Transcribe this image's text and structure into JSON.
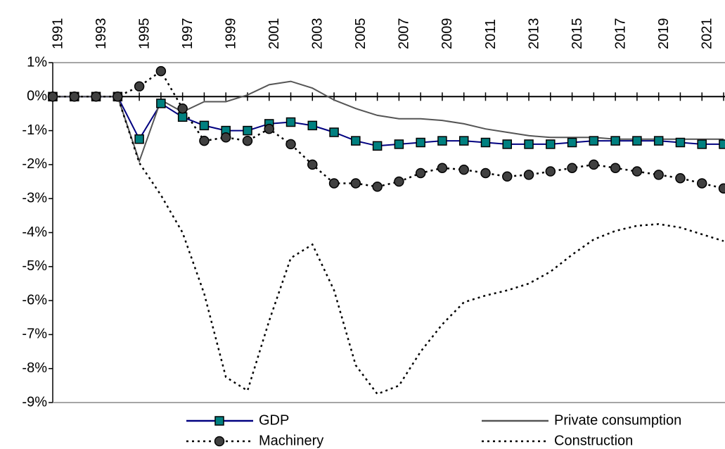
{
  "chart_data": {
    "type": "line",
    "categories": [
      "1991",
      null,
      "1993",
      null,
      "1995",
      null,
      "1997",
      null,
      "1999",
      null,
      "2001",
      null,
      "2003",
      null,
      "2005",
      null,
      "2007",
      null,
      "2009",
      null,
      "2011",
      null,
      "2013",
      null,
      "2015",
      null,
      "2017",
      null,
      "2019",
      null,
      "2021",
      null
    ],
    "ylim": [
      -9,
      1
    ],
    "yticks": [
      {
        "value": 1,
        "label": "1%"
      },
      {
        "value": 0,
        "label": "0%"
      },
      {
        "value": -1,
        "label": "-1%"
      },
      {
        "value": -2,
        "label": "-2%"
      },
      {
        "value": -3,
        "label": "-3%"
      },
      {
        "value": -4,
        "label": "-4%"
      },
      {
        "value": -5,
        "label": "-5%"
      },
      {
        "value": -6,
        "label": "-6%"
      },
      {
        "value": -7,
        "label": "-7%"
      },
      {
        "value": -8,
        "label": "-8%"
      },
      {
        "value": -9,
        "label": "-9%"
      }
    ],
    "series": [
      {
        "name": "GDP",
        "color": "#000080",
        "marker": "square",
        "marker_color": "#008080",
        "line_style": "solid",
        "values": [
          0,
          0,
          0,
          0,
          -1.25,
          -0.2,
          -0.6,
          -0.85,
          -1.0,
          -1.0,
          -0.8,
          -0.75,
          -0.85,
          -1.05,
          -1.3,
          -1.45,
          -1.4,
          -1.35,
          -1.3,
          -1.3,
          -1.35,
          -1.4,
          -1.4,
          -1.4,
          -1.35,
          -1.3,
          -1.3,
          -1.3,
          -1.3,
          -1.35,
          -1.4,
          -1.4
        ]
      },
      {
        "name": "Private consumption",
        "color": "#555555",
        "line_style": "solid",
        "values": [
          0,
          0,
          0,
          0,
          -1.9,
          -0.1,
          -0.45,
          -0.15,
          -0.15,
          0.05,
          0.35,
          0.45,
          0.25,
          -0.1,
          -0.35,
          -0.55,
          -0.65,
          -0.65,
          -0.7,
          -0.8,
          -0.95,
          -1.05,
          -1.15,
          -1.2,
          -1.2,
          -1.2,
          -1.25,
          -1.25,
          -1.25,
          -1.25,
          -1.25,
          -1.25
        ]
      },
      {
        "name": "Machinery",
        "color": "#000000",
        "marker": "circle",
        "marker_color": "#404040",
        "line_style": "dotted",
        "values": [
          0,
          0,
          0,
          0,
          0.3,
          0.75,
          -0.35,
          -1.3,
          -1.2,
          -1.3,
          -0.95,
          -1.4,
          -2.0,
          -2.55,
          -2.55,
          -2.65,
          -2.5,
          -2.25,
          -2.1,
          -2.15,
          -2.25,
          -2.35,
          -2.3,
          -2.2,
          -2.1,
          -2.0,
          -2.1,
          -2.2,
          -2.3,
          -2.4,
          -2.55,
          -2.7
        ]
      },
      {
        "name": "Construction",
        "color": "#000000",
        "line_style": "dotted",
        "values": [
          0,
          0,
          0,
          0,
          -1.95,
          -2.9,
          -4.0,
          -5.8,
          -8.25,
          -8.65,
          -6.6,
          -4.75,
          -4.35,
          -5.7,
          -7.9,
          -8.75,
          -8.5,
          -7.5,
          -6.7,
          -6.05,
          -5.85,
          -5.7,
          -5.5,
          -5.15,
          -4.65,
          -4.2,
          -3.95,
          -3.8,
          -3.75,
          -3.85,
          -4.05,
          -4.25
        ]
      }
    ]
  }
}
